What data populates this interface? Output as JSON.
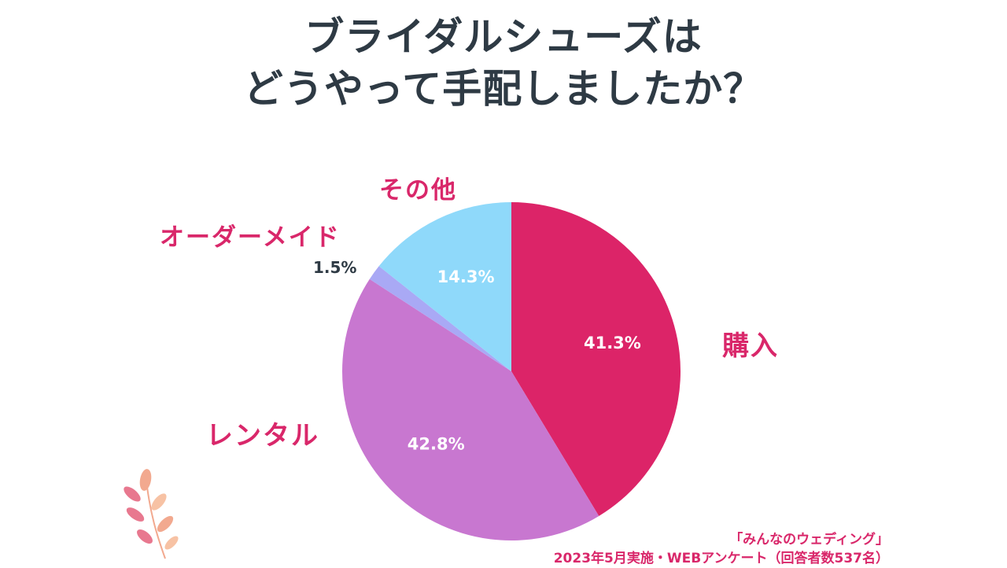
{
  "title": {
    "line1": "ブライダルシューズは",
    "line2": "どうやって手配しましたか？"
  },
  "chart_data": {
    "type": "pie",
    "start_angle_deg": 0,
    "direction": "clockwise",
    "slices": [
      {
        "label": "購入",
        "value": 41.3,
        "display": "41.3%",
        "color": "#dc2468"
      },
      {
        "label": "レンタル",
        "value": 42.8,
        "display": "42.8%",
        "color": "#c877d0"
      },
      {
        "label": "オーダーメイド",
        "value": 1.5,
        "display": "1.5%",
        "color": "#a9a9f5"
      },
      {
        "label": "その他",
        "value": 14.3,
        "display": "14.3%",
        "color": "#8fd9fa"
      }
    ]
  },
  "source": {
    "line1": "「みんなのウェディング」",
    "line2": "2023年5月実施・WEBアンケート（回答者数537名）"
  },
  "decoration": {
    "icon": "leaf-branch-icon",
    "colors": [
      "#f2a98f",
      "#e8788f",
      "#f7c2a4"
    ]
  }
}
